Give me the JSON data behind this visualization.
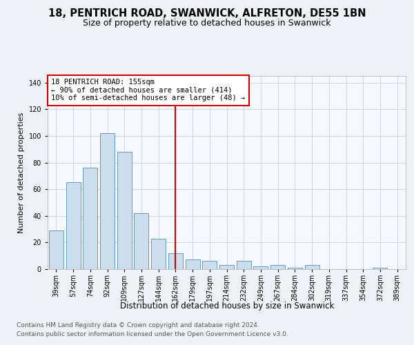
{
  "title_line1": "18, PENTRICH ROAD, SWANWICK, ALFRETON, DE55 1BN",
  "title_line2": "Size of property relative to detached houses in Swanwick",
  "xlabel": "Distribution of detached houses by size in Swanwick",
  "ylabel": "Number of detached properties",
  "footnote1": "Contains HM Land Registry data © Crown copyright and database right 2024.",
  "footnote2": "Contains public sector information licensed under the Open Government Licence v3.0.",
  "bar_color": "#ccdded",
  "bar_edge_color": "#6699bb",
  "vline_color": "#cc0000",
  "vline_index": 7,
  "annotation_title": "18 PENTRICH ROAD: 155sqm",
  "annotation_line1": "← 90% of detached houses are smaller (414)",
  "annotation_line2": "10% of semi-detached houses are larger (48) →",
  "annotation_box_color": "#cc0000",
  "categories": [
    "39sqm",
    "57sqm",
    "74sqm",
    "92sqm",
    "109sqm",
    "127sqm",
    "144sqm",
    "162sqm",
    "179sqm",
    "197sqm",
    "214sqm",
    "232sqm",
    "249sqm",
    "267sqm",
    "284sqm",
    "302sqm",
    "319sqm",
    "337sqm",
    "354sqm",
    "372sqm",
    "389sqm"
  ],
  "values": [
    29,
    65,
    76,
    102,
    88,
    42,
    23,
    12,
    7,
    6,
    3,
    6,
    2,
    3,
    1,
    3,
    0,
    0,
    0,
    1,
    0
  ],
  "ylim": [
    0,
    145
  ],
  "yticks": [
    0,
    20,
    40,
    60,
    80,
    100,
    120,
    140
  ],
  "background_color": "#eef2f7",
  "plot_background": "#f5f8fc",
  "grid_color": "#c8d0dc"
}
